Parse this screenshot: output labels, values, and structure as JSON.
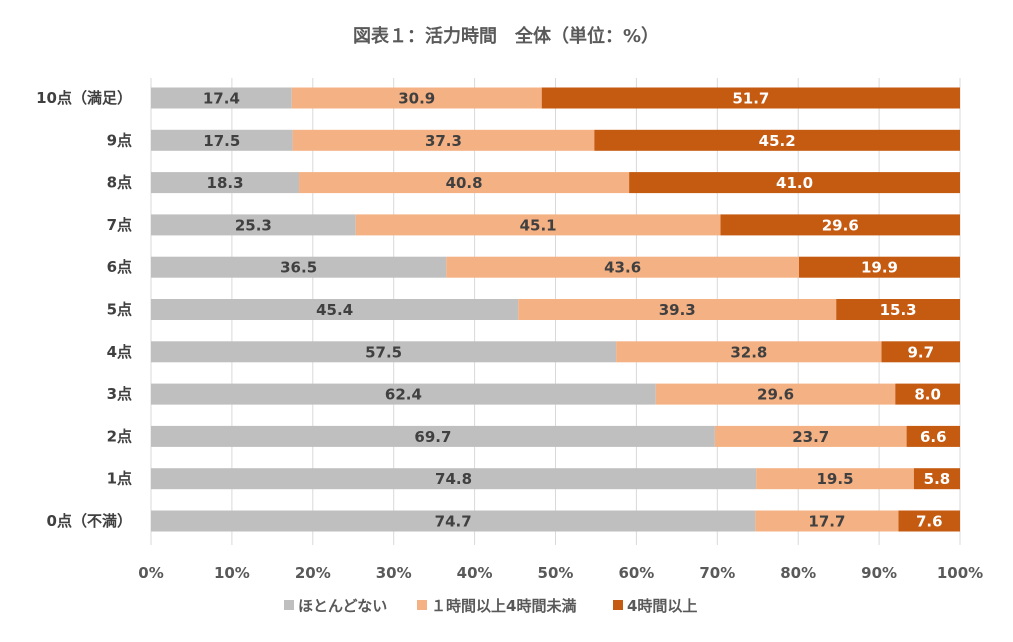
{
  "chart_data": {
    "type": "bar",
    "orientation": "horizontal",
    "stacked": true,
    "title": "図表１：活力時間　全体（単位：%）",
    "categories": [
      "10点（満足）",
      "9点",
      "8点",
      "7点",
      "6点",
      "5点",
      "4点",
      "3点",
      "2点",
      "1点",
      "0点（不満）"
    ],
    "series": [
      {
        "name": "ほとんどない",
        "color": "#bfbfbf",
        "label_color": "#404040",
        "values": [
          17.4,
          17.5,
          18.3,
          25.3,
          36.5,
          45.4,
          57.5,
          62.4,
          69.7,
          74.8,
          74.7
        ]
      },
      {
        "name": "１時間以上4時間未満",
        "color": "#f4b183",
        "label_color": "#404040",
        "values": [
          30.9,
          37.3,
          40.8,
          45.1,
          43.6,
          39.3,
          32.8,
          29.6,
          23.7,
          19.5,
          17.7
        ]
      },
      {
        "name": "4時間以上",
        "color": "#c55a11",
        "label_color": "#ffffff",
        "values": [
          51.7,
          45.2,
          41.0,
          29.6,
          19.9,
          15.3,
          9.7,
          8.0,
          6.6,
          5.8,
          7.6
        ]
      }
    ],
    "xlim": [
      0,
      100
    ],
    "xticks": [
      "0%",
      "10%",
      "20%",
      "30%",
      "40%",
      "50%",
      "60%",
      "70%",
      "80%",
      "90%",
      "100%"
    ],
    "grid": true,
    "legend_position": "bottom"
  }
}
